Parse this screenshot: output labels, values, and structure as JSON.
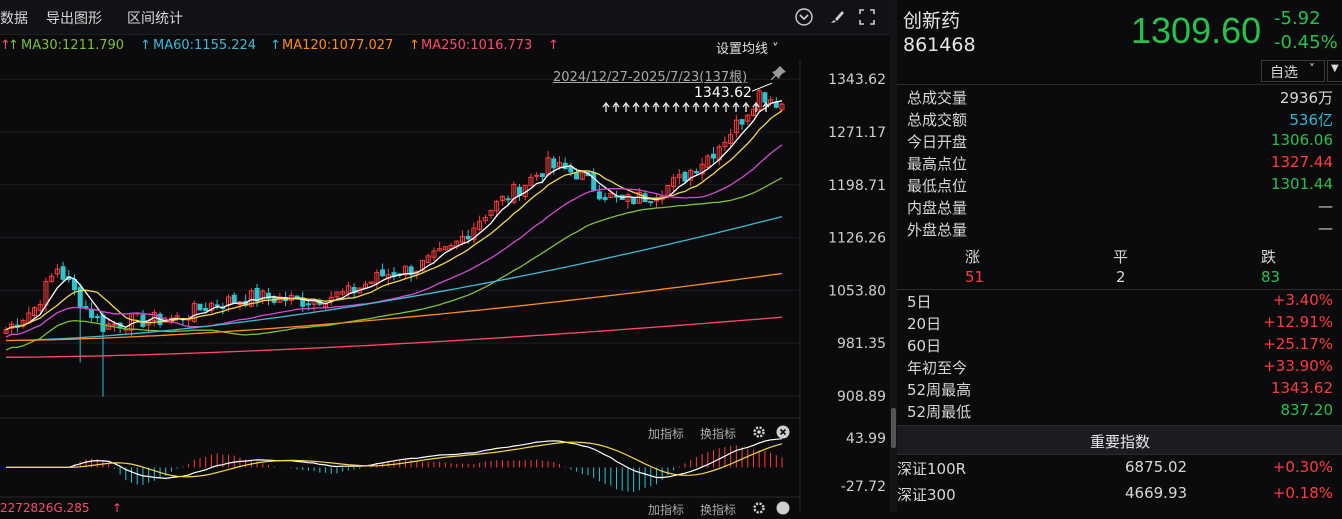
{
  "toolbar": {
    "tab_data": "数据",
    "tab_export": "导出图形",
    "tab_range": "区间统计"
  },
  "ma_legend": {
    "ma30": "MA30:1211.790",
    "ma60": "MA60:1155.224",
    "ma120": "MA120:1077.027",
    "ma250": "MA250:1016.773",
    "settings": "设置均线",
    "colors": {
      "ma30": "#7fbf3a",
      "ma60": "#3fb9d6",
      "ma120": "#ff8b1a",
      "ma250": "#ff4a6d"
    }
  },
  "chart": {
    "date_range": "2024/12/27-2025/7/23(137根)",
    "peak_label": "1343.62",
    "y_ticks": [
      "1343.62",
      "1271.17",
      "1198.71",
      "1126.26",
      "1053.80",
      "981.35",
      "908.89"
    ],
    "sub_ticks": [
      "43.99",
      "-27.72"
    ],
    "sub_buttons": {
      "add": "加指标",
      "switch": "换指标"
    },
    "bottom_legend": "2272826G.285",
    "colors": {
      "up": "#ff3b3b",
      "down": "#2ec3cf"
    }
  },
  "chart_data": {
    "type": "candlestick",
    "title": "创新药",
    "y_ticks": [
      1343.62,
      1271.17,
      1198.71,
      1126.26,
      1053.8,
      981.35,
      908.89
    ],
    "ylim": [
      880,
      1370
    ],
    "ma_values": {
      "MA30": 1211.79,
      "MA60": 1155.224,
      "MA120": 1077.027,
      "MA250": 1016.773
    },
    "high_mark": 1343.62
  },
  "quote": {
    "name": "创新药",
    "code": "861468",
    "price": "1309.60",
    "change": "-5.92",
    "change_pct": "-0.45%",
    "watch_button": "自选",
    "stats": [
      {
        "k": "总成交量",
        "v": "2936万",
        "c": "#d7d7d7"
      },
      {
        "k": "总成交额",
        "v": "536亿",
        "c": "#2fb8d8"
      },
      {
        "k": "今日开盘",
        "v": "1306.06",
        "c": "#27c24c"
      },
      {
        "k": "最高点位",
        "v": "1327.44",
        "c": "#ff3b3b"
      },
      {
        "k": "最低点位",
        "v": "1301.44",
        "c": "#27c24c"
      },
      {
        "k": "内盘总量",
        "v": "—",
        "c": "#d7d7d7"
      },
      {
        "k": "外盘总量",
        "v": "—",
        "c": "#d7d7d7"
      }
    ],
    "breadth": {
      "up_label": "涨",
      "flat_label": "平",
      "down_label": "跌",
      "up": "51",
      "flat": "2",
      "down": "83"
    },
    "perf": [
      {
        "k": "5日",
        "v": "+3.40%"
      },
      {
        "k": "20日",
        "v": "+12.91%"
      },
      {
        "k": "60日",
        "v": "+25.17%"
      },
      {
        "k": "年初至今",
        "v": "+33.90%"
      },
      {
        "k": "52周最高",
        "v": "1343.62"
      },
      {
        "k": "52周最低",
        "v": "837.20"
      }
    ],
    "index_header": "重要指数",
    "indices": [
      {
        "name": "深证100R",
        "price": "6875.02",
        "pct": "+0.30%"
      },
      {
        "name": "深证300",
        "price": "4669.93",
        "pct": "+0.18%"
      }
    ]
  }
}
